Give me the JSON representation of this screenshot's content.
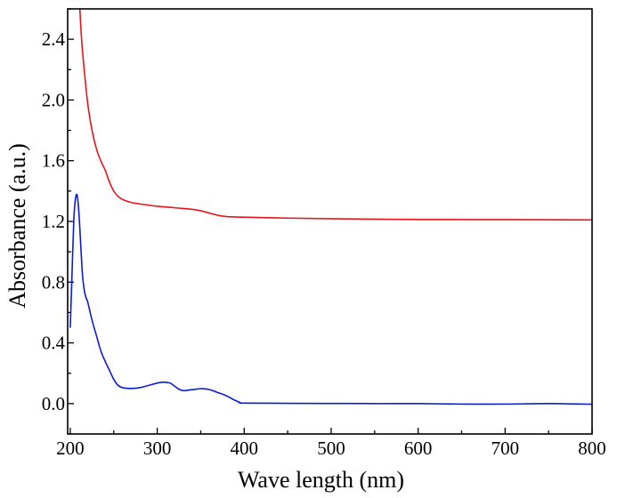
{
  "chart_data": {
    "type": "line",
    "title": "",
    "xlabel": "Wave length (nm)",
    "ylabel": "Absorbance (a.u.)",
    "xlim": [
      197,
      800
    ],
    "ylim": [
      -0.2,
      2.6
    ],
    "x_major_ticks": [
      200,
      300,
      400,
      500,
      600,
      700,
      800
    ],
    "x_minor_step": 50,
    "y_major_ticks": [
      0.0,
      0.4,
      0.8,
      1.2,
      1.6,
      2.0,
      2.4
    ],
    "y_minor_step": 0.2,
    "x_tick_labels": [
      "200",
      "300",
      "400",
      "500",
      "600",
      "700",
      "800"
    ],
    "y_tick_labels": [
      "0.0",
      "0.4",
      "0.8",
      "1.2",
      "1.6",
      "2.0",
      "2.4"
    ],
    "grid": false,
    "legend": "none",
    "series": [
      {
        "color": "#e8141c",
        "x": [
          211,
          213,
          216,
          220,
          225,
          230,
          235,
          240,
          245,
          250,
          255,
          260,
          270,
          280,
          300,
          320,
          340,
          350,
          360,
          370,
          380,
          400,
          450,
          500,
          550,
          600,
          700,
          800
        ],
        "y": [
          2.6,
          2.4,
          2.2,
          1.98,
          1.8,
          1.68,
          1.6,
          1.54,
          1.46,
          1.4,
          1.365,
          1.345,
          1.325,
          1.315,
          1.3,
          1.29,
          1.28,
          1.27,
          1.255,
          1.24,
          1.232,
          1.228,
          1.222,
          1.218,
          1.215,
          1.213,
          1.212,
          1.21
        ]
      },
      {
        "color": "#0a1cd4",
        "x": [
          200,
          202,
          204,
          206,
          208,
          210,
          212,
          214,
          216,
          218,
          220,
          225,
          230,
          235,
          240,
          245,
          250,
          255,
          260,
          270,
          280,
          290,
          300,
          305,
          310,
          315,
          320,
          325,
          330,
          335,
          340,
          345,
          350,
          355,
          360,
          365,
          370,
          375,
          380,
          385,
          390,
          395,
          400,
          450,
          500,
          550,
          600,
          650,
          700,
          750,
          800
        ],
        "y": [
          0.5,
          0.85,
          1.2,
          1.35,
          1.37,
          1.25,
          1.05,
          0.85,
          0.75,
          0.7,
          0.67,
          0.55,
          0.45,
          0.35,
          0.28,
          0.22,
          0.16,
          0.12,
          0.105,
          0.1,
          0.105,
          0.12,
          0.135,
          0.14,
          0.14,
          0.135,
          0.115,
          0.095,
          0.085,
          0.088,
          0.092,
          0.095,
          0.098,
          0.097,
          0.092,
          0.083,
          0.072,
          0.062,
          0.05,
          0.035,
          0.02,
          0.008,
          0.003,
          0.002,
          0.001,
          0.0,
          0.0,
          -0.003,
          -0.003,
          0.0,
          -0.004
        ]
      }
    ]
  }
}
